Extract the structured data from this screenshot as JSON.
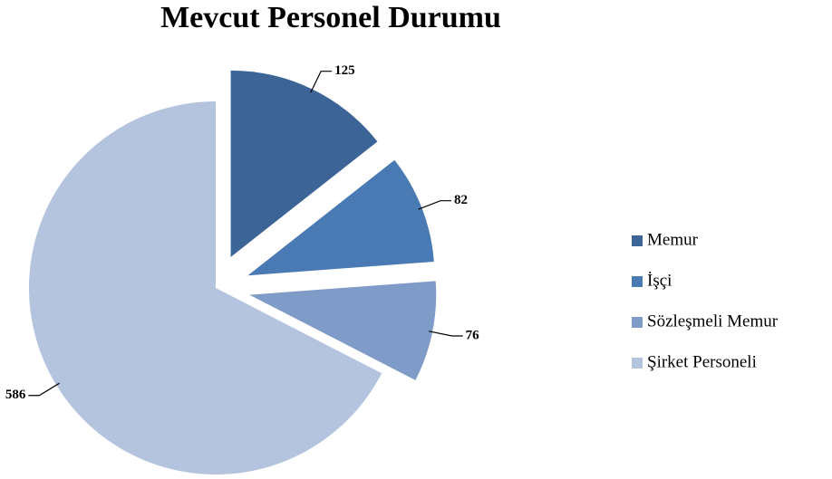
{
  "chart_data": {
    "type": "pie",
    "title": "Mevcut Personel Durumu",
    "categories": [
      "Memur",
      "İşçi",
      "Sözleşmeli Memur",
      "Şirket Personeli"
    ],
    "values": [
      125,
      82,
      76,
      586
    ],
    "colors": [
      "#3c6496",
      "#4a7ab4",
      "#7f9bc8",
      "#b4c3de"
    ],
    "legend": "right"
  }
}
